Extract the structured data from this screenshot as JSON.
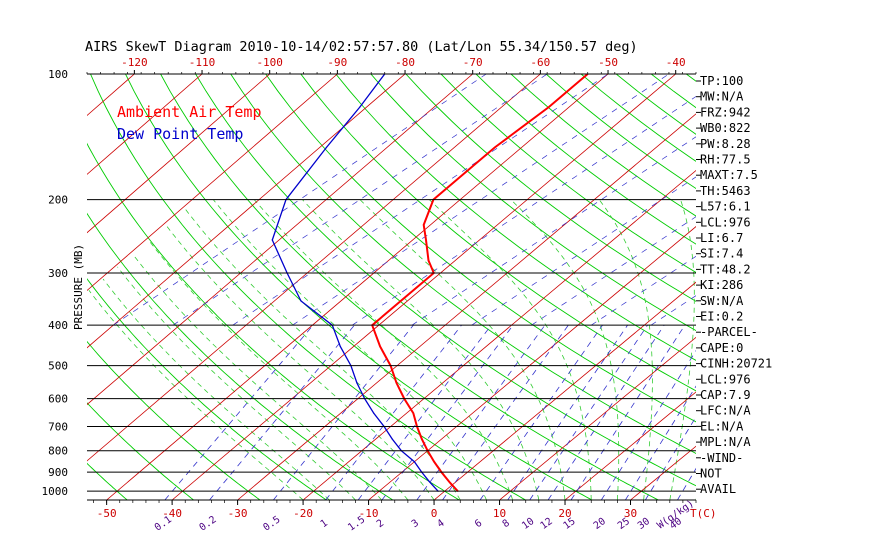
{
  "title": "AIRS SkewT Diagram 2010-10-14/02:57:57.80 (Lat/Lon 55.34/150.57 deg)",
  "colors": {
    "axes": "#000000",
    "isotherm": "#cc0000",
    "dry_adiabat": "#00cc00",
    "moist_adiabat": "#33cc33",
    "mixing_ratio": "#3333cc",
    "temp": "#ff0000",
    "dew": "#0000cc",
    "tick_red": "#cc0000",
    "mr_label": "#4b0082"
  },
  "chart_data": {
    "type": "line",
    "title": "AIRS SkewT Diagram 2010-10-14/02:57:57.80 (Lat/Lon 55.34/150.57 deg)",
    "ylabel": "PRESSURE (MB)",
    "y_log": true,
    "y_range": [
      1050,
      100
    ],
    "pressure_levels": [
      1000,
      900,
      800,
      700,
      600,
      500,
      400,
      300,
      200,
      100
    ],
    "pressure_labels": [
      "1000",
      "900",
      "800",
      "700",
      "600",
      "500",
      "400",
      "300",
      "200",
      "100"
    ],
    "bottom_axis": {
      "label": "T(C)",
      "values": [
        -50,
        -40,
        -30,
        -20,
        -10,
        0,
        10,
        20,
        30
      ],
      "labels": [
        "-50",
        "-40",
        "-30",
        "-20",
        "-10",
        "0",
        "10",
        "20",
        "30"
      ],
      "range": [
        -53,
        40
      ]
    },
    "top_axis": {
      "values": [
        -120,
        -110,
        -100,
        -90,
        -80,
        -70,
        -60,
        -50,
        -40
      ],
      "labels": [
        "-120",
        "-110",
        "-100",
        "-90",
        "-80",
        "-70",
        "-60",
        "-50",
        "-40"
      ],
      "range": [
        -127,
        -37
      ]
    },
    "mixing_ratio_axis": {
      "label": "W(g/kg)",
      "values": [
        0.1,
        0.2,
        0.5,
        1,
        1.5,
        2,
        3,
        4,
        6,
        8,
        10,
        12,
        15,
        20,
        25,
        30,
        40
      ],
      "labels": [
        "0.1",
        "0.2",
        "0.5",
        "1",
        "1.5",
        "2",
        "3",
        "4",
        "6",
        "8",
        "10",
        "12",
        "15",
        "20",
        "25",
        "30",
        "40"
      ]
    },
    "series": [
      {
        "name": "Ambient Air Temp",
        "color": "#ff0000",
        "points": [
          {
            "p": 1000,
            "t": 2
          },
          {
            "p": 950,
            "t": -1
          },
          {
            "p": 900,
            "t": -4
          },
          {
            "p": 850,
            "t": -7
          },
          {
            "p": 800,
            "t": -10
          },
          {
            "p": 750,
            "t": -13
          },
          {
            "p": 700,
            "t": -16
          },
          {
            "p": 650,
            "t": -19
          },
          {
            "p": 600,
            "t": -23
          },
          {
            "p": 550,
            "t": -27
          },
          {
            "p": 500,
            "t": -31
          },
          {
            "p": 450,
            "t": -36
          },
          {
            "p": 400,
            "t": -41
          },
          {
            "p": 300,
            "t": -41
          },
          {
            "p": 280,
            "t": -44
          },
          {
            "p": 250,
            "t": -48
          },
          {
            "p": 230,
            "t": -51
          },
          {
            "p": 200,
            "t": -54
          },
          {
            "p": 180,
            "t": -54
          },
          {
            "p": 150,
            "t": -54
          },
          {
            "p": 120,
            "t": -53
          },
          {
            "p": 100,
            "t": -53
          }
        ]
      },
      {
        "name": "Dew Point Temp",
        "color": "#0000cc",
        "points": [
          {
            "p": 1000,
            "t": -1
          },
          {
            "p": 950,
            "t": -4
          },
          {
            "p": 900,
            "t": -7
          },
          {
            "p": 850,
            "t": -10
          },
          {
            "p": 800,
            "t": -14
          },
          {
            "p": 750,
            "t": -17.5
          },
          {
            "p": 700,
            "t": -21
          },
          {
            "p": 650,
            "t": -25
          },
          {
            "p": 600,
            "t": -29
          },
          {
            "p": 550,
            "t": -33
          },
          {
            "p": 500,
            "t": -37
          },
          {
            "p": 450,
            "t": -42
          },
          {
            "p": 400,
            "t": -47
          },
          {
            "p": 350,
            "t": -56
          },
          {
            "p": 300,
            "t": -63
          },
          {
            "p": 250,
            "t": -71
          },
          {
            "p": 200,
            "t": -76
          },
          {
            "p": 150,
            "t": -79
          },
          {
            "p": 120,
            "t": -81
          },
          {
            "p": 100,
            "t": -83
          }
        ]
      }
    ],
    "legend": [
      "Ambient Air Temp",
      "Dew Point Temp"
    ],
    "legend_position": "top-left",
    "indices": [
      "TP:100",
      "MW:N/A",
      "FRZ:942",
      "WB0:822",
      "PW:8.28",
      "RH:77.5",
      "MAXT:7.5",
      "TH:5463",
      "L57:6.1",
      "LCL:976",
      "LI:6.7",
      "SI:7.4",
      "TT:48.2",
      "KI:286",
      "SW:N/A",
      "EI:0.2",
      "-PARCEL-",
      "CAPE:0",
      "CINH:20721",
      "LCL:976",
      "CAP:7.9",
      "LFC:N/A",
      "EL:N/A",
      "MPL:N/A",
      "-WIND-",
      "NOT",
      "AVAIL"
    ]
  }
}
